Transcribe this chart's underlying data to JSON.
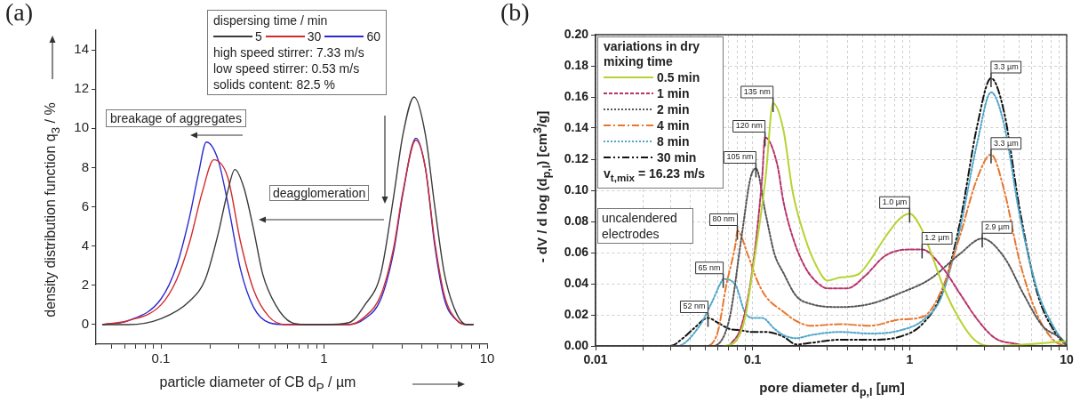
{
  "chart_data": [
    {
      "type": "line",
      "title": "(a)",
      "xlabel": "particle diameter of CB d$_{P}$ / µm",
      "ylabel": "density distribution function q$_{3}$ / %",
      "legend_title": "dispersing time / min",
      "legend": "top",
      "log": "x",
      "grid": false,
      "marker": "none",
      "line_style": "solid",
      "xlim": [
        0.04,
        10
      ],
      "xticks": [
        {
          "value": 0.05,
          "label": null
        },
        {
          "value": 0.06,
          "label": null
        },
        {
          "value": 0.07,
          "label": null
        },
        {
          "value": 0.08,
          "label": null
        },
        {
          "value": 0.09,
          "label": null
        },
        0.1,
        {
          "value": 0.2,
          "label": null
        },
        {
          "value": 0.3,
          "label": null
        },
        {
          "value": 0.4,
          "label": null
        },
        {
          "value": 0.5,
          "label": null
        },
        {
          "value": 0.6,
          "label": null
        },
        {
          "value": 0.7,
          "label": null
        },
        {
          "value": 0.8,
          "label": null
        },
        {
          "value": 0.9,
          "label": null
        },
        1,
        {
          "value": 2,
          "label": null
        },
        {
          "value": 3,
          "label": null
        },
        {
          "value": 4,
          "label": null
        },
        {
          "value": 5,
          "label": null
        },
        {
          "value": 6,
          "label": null
        },
        {
          "value": 7,
          "label": null
        },
        {
          "value": 8,
          "label": null
        },
        {
          "value": 9,
          "label": null
        },
        10
      ],
      "ylim": [
        -1,
        15
      ],
      "yticks": [
        0,
        2,
        4,
        6,
        8,
        10,
        12,
        14
      ],
      "annotations": [
        "high speed stirrer: 7.33 m/s",
        "low speed stirrer: 0.53 m/s",
        "solids content: 82.5 %",
        "breakage of aggregates",
        "deagglomeration"
      ],
      "series": [
        {
          "name": "5",
          "color": "#3a3a3a",
          "x": [
            0.044,
            0.063,
            0.1,
            0.15,
            0.187,
            0.224,
            0.257,
            0.284,
            0.322,
            0.369,
            0.42,
            0.505,
            0.632,
            0.76,
            1.0,
            1.42,
            1.78,
            2.23,
            2.67,
            3.05,
            3.57,
            4.18,
            4.78,
            5.47,
            6.55,
            7.5,
            8.2
          ],
          "values": [
            0,
            0,
            0.3,
            1.2,
            2.3,
            4.6,
            6.8,
            7.9,
            7.0,
            4.9,
            2.6,
            1.0,
            0.1,
            0,
            0,
            0.1,
            1.0,
            2.6,
            6.5,
            9.7,
            11.6,
            9.7,
            6.0,
            2.6,
            0.5,
            0,
            0
          ]
        },
        {
          "name": "30",
          "color": "#d42a2a",
          "x": [
            0.044,
            0.063,
            0.1,
            0.125,
            0.15,
            0.18,
            0.211,
            0.257,
            0.308,
            0.369,
            0.46,
            0.58,
            1.0,
            1.42,
            1.78,
            2.23,
            2.67,
            3.05,
            3.66,
            4.18,
            4.78,
            5.47,
            6.55,
            7.5,
            8.2
          ],
          "values": [
            0,
            0.2,
            1.0,
            2.3,
            4.2,
            6.8,
            8.4,
            7.5,
            4.2,
            1.8,
            0.4,
            0,
            0,
            0,
            0.4,
            1.5,
            3.9,
            6.8,
            9.4,
            8.0,
            4.2,
            1.5,
            0.2,
            0,
            0
          ]
        },
        {
          "name": "60",
          "color": "#2a2ad0",
          "x": [
            0.044,
            0.063,
            0.1,
            0.125,
            0.15,
            0.17,
            0.19,
            0.224,
            0.257,
            0.308,
            0.369,
            0.46,
            0.58,
            1.0,
            1.42,
            1.78,
            2.23,
            2.67,
            3.05,
            3.66,
            4.18,
            4.78,
            5.47,
            6.55,
            7.5,
            8.2
          ],
          "values": [
            0,
            0.2,
            1.3,
            3.0,
            5.5,
            7.7,
            9.3,
            8.4,
            6.2,
            2.8,
            0.9,
            0.1,
            0,
            0,
            0,
            0.3,
            1.3,
            3.7,
            6.7,
            9.5,
            8.0,
            4.0,
            1.3,
            0.2,
            0,
            0
          ]
        }
      ]
    },
    {
      "type": "line",
      "title": "(b)",
      "xlabel": "pore diameter d$_{p,l}$ [µm]",
      "ylabel": "- dV / d log (d$_{p,l}$) [cm$^{3}$/g]",
      "legend_title": "variations in dry mixing time",
      "legend": "top left",
      "log": "x",
      "grid": true,
      "marker": "none",
      "xlim": [
        0.01,
        10
      ],
      "xticks": [
        0.01,
        {
          "value": 0.02,
          "label": null
        },
        {
          "value": 0.03,
          "label": null
        },
        {
          "value": 0.04,
          "label": null
        },
        {
          "value": 0.05,
          "label": null
        },
        {
          "value": 0.06,
          "label": null
        },
        {
          "value": 0.07,
          "label": null
        },
        {
          "value": 0.08,
          "label": null
        },
        {
          "value": 0.09,
          "label": null
        },
        0.1,
        {
          "value": 0.2,
          "label": null
        },
        {
          "value": 0.3,
          "label": null
        },
        {
          "value": 0.4,
          "label": null
        },
        {
          "value": 0.5,
          "label": null
        },
        {
          "value": 0.6,
          "label": null
        },
        {
          "value": 0.7,
          "label": null
        },
        {
          "value": 0.8,
          "label": null
        },
        {
          "value": 0.9,
          "label": null
        },
        1,
        {
          "value": 2,
          "label": null
        },
        {
          "value": 3,
          "label": null
        },
        {
          "value": 4,
          "label": null
        },
        {
          "value": 5,
          "label": null
        },
        {
          "value": 6,
          "label": null
        },
        {
          "value": 7,
          "label": null
        },
        {
          "value": 8,
          "label": null
        },
        {
          "value": 9,
          "label": null
        },
        10
      ],
      "ylim": [
        0,
        0.2
      ],
      "yticks": [
        {
          "value": 0,
          "label": "0.00"
        },
        {
          "value": 0.02,
          "label": "0.02"
        },
        {
          "value": 0.04,
          "label": "0.04"
        },
        {
          "value": 0.06,
          "label": "0.06"
        },
        {
          "value": 0.08,
          "label": "0.08"
        },
        {
          "value": 0.1,
          "label": "0.10"
        },
        {
          "value": 0.12,
          "label": "0.12"
        },
        {
          "value": 0.14,
          "label": "0.14"
        },
        {
          "value": 0.16,
          "label": "0.16"
        },
        {
          "value": 0.18,
          "label": "0.18"
        },
        {
          "value": 0.2,
          "label": "0.20"
        }
      ],
      "annotations": [
        "v$_{t,mix}$ = 16.23 m/s",
        "uncalendered electrodes",
        {
          "text": "135 nm",
          "x": 0.135,
          "y": 0.156
        },
        {
          "text": "120 nm",
          "x": 0.12,
          "y": 0.134
        },
        {
          "text": "105 nm",
          "x": 0.105,
          "y": 0.114
        },
        {
          "text": "80 nm",
          "x": 0.08,
          "y": 0.074
        },
        {
          "text": "65 nm",
          "x": 0.065,
          "y": 0.043
        },
        {
          "text": "52 nm",
          "x": 0.052,
          "y": 0.018
        },
        {
          "text": "1.0 µm",
          "x": 1.0,
          "y": 0.085
        },
        {
          "text": "1.2 µm",
          "x": 1.2,
          "y": 0.062
        },
        {
          "text": "2.9 µm",
          "x": 2.9,
          "y": 0.069
        },
        {
          "text": "3.3 µm",
          "x": 3.3,
          "y": 0.172
        },
        {
          "text": "3.3 µm",
          "x": 3.3,
          "y": 0.123
        }
      ],
      "series": [
        {
          "name": "0.5 min",
          "color": "#b5d431",
          "line_style": "solid",
          "x": [
            0.066,
            0.078,
            0.089,
            0.101,
            0.121,
            0.135,
            0.157,
            0.18,
            0.215,
            0.256,
            0.3,
            0.36,
            0.47,
            0.56,
            0.7,
            0.87,
            1.0,
            1.18,
            1.4,
            1.67,
            2.08,
            2.58,
            3.2,
            10
          ],
          "values": [
            0,
            0.003,
            0.017,
            0.051,
            0.108,
            0.156,
            0.139,
            0.099,
            0.07,
            0.051,
            0.042,
            0.044,
            0.046,
            0.055,
            0.07,
            0.082,
            0.085,
            0.076,
            0.057,
            0.036,
            0.017,
            0.004,
            0,
            0.003
          ]
        },
        {
          "name": "1 min",
          "color": "#b8336a",
          "line_style": "dashed",
          "x": [
            0.071,
            0.085,
            0.1,
            0.115,
            0.12,
            0.144,
            0.157,
            0.18,
            0.215,
            0.256,
            0.3,
            0.4,
            0.52,
            0.7,
            1.0,
            1.2,
            1.6,
            2.08,
            2.7,
            3.5,
            5
          ],
          "values": [
            0,
            0.013,
            0.05,
            0.108,
            0.134,
            0.116,
            0.093,
            0.07,
            0.051,
            0.041,
            0.037,
            0.037,
            0.045,
            0.058,
            0.062,
            0.062,
            0.051,
            0.034,
            0.017,
            0.005,
            0.001
          ]
        },
        {
          "name": "2 min",
          "color": "#555555",
          "line_style": "dotted",
          "x": [
            0.01,
            0.055,
            0.071,
            0.085,
            0.097,
            0.105,
            0.121,
            0.138,
            0.157,
            0.19,
            0.235,
            0.36,
            0.56,
            0.87,
            1.35,
            2.08,
            2.9,
            4.0,
            5.4,
            7.0,
            9.6,
            10
          ],
          "values": [
            0,
            0,
            0.017,
            0.07,
            0.108,
            0.114,
            0.085,
            0.059,
            0.047,
            0.032,
            0.027,
            0.025,
            0.027,
            0.034,
            0.043,
            0.059,
            0.069,
            0.057,
            0.032,
            0.013,
            0.003,
            0
          ]
        },
        {
          "name": "4 min",
          "color": "#e8772e",
          "line_style": "dashdot",
          "x": [
            0.01,
            0.05,
            0.06,
            0.068,
            0.078,
            0.08,
            0.093,
            0.106,
            0.121,
            0.157,
            0.19,
            0.235,
            0.36,
            0.56,
            0.87,
            1.23,
            1.6,
            2.08,
            2.7,
            3.3,
            4.0,
            5.0,
            6.5,
            8.4,
            10
          ],
          "values": [
            0,
            0,
            0.009,
            0.039,
            0.066,
            0.074,
            0.059,
            0.043,
            0.032,
            0.022,
            0.016,
            0.013,
            0.014,
            0.013,
            0.017,
            0.019,
            0.036,
            0.07,
            0.108,
            0.123,
            0.1,
            0.055,
            0.02,
            0.003,
            0
          ]
        },
        {
          "name": "8 min",
          "color": "#4fa6c9",
          "line_style": "dotted",
          "x": [
            0.01,
            0.033,
            0.046,
            0.055,
            0.063,
            0.065,
            0.078,
            0.089,
            0.1,
            0.115,
            0.138,
            0.157,
            0.19,
            0.235,
            0.36,
            0.56,
            0.87,
            1.23,
            1.6,
            2.08,
            2.7,
            3.3,
            4.0,
            5.0,
            6.5,
            8.4,
            10
          ],
          "values": [
            0,
            0,
            0.013,
            0.028,
            0.041,
            0.043,
            0.039,
            0.022,
            0.018,
            0.018,
            0.011,
            0.007,
            0.005,
            0.007,
            0.009,
            0.008,
            0.01,
            0.017,
            0.032,
            0.074,
            0.131,
            0.163,
            0.142,
            0.085,
            0.036,
            0.011,
            0
          ]
        },
        {
          "name": "30 min",
          "color": "#111111",
          "line_style": "dashdotdot",
          "x": [
            0.01,
            0.03,
            0.036,
            0.042,
            0.052,
            0.06,
            0.071,
            0.085,
            0.1,
            0.121,
            0.157,
            0.19,
            0.235,
            0.36,
            0.56,
            0.87,
            1.23,
            1.6,
            2.08,
            2.7,
            3.3,
            4.0,
            5.0,
            6.5,
            8.4,
            10
          ],
          "values": [
            0,
            0,
            0.005,
            0.011,
            0.018,
            0.015,
            0.011,
            0.01,
            0.009,
            0.009,
            0.006,
            0.001,
            0.002,
            0.004,
            0.004,
            0.006,
            0.015,
            0.034,
            0.078,
            0.142,
            0.172,
            0.15,
            0.089,
            0.034,
            0.009,
            0
          ]
        }
      ]
    }
  ]
}
